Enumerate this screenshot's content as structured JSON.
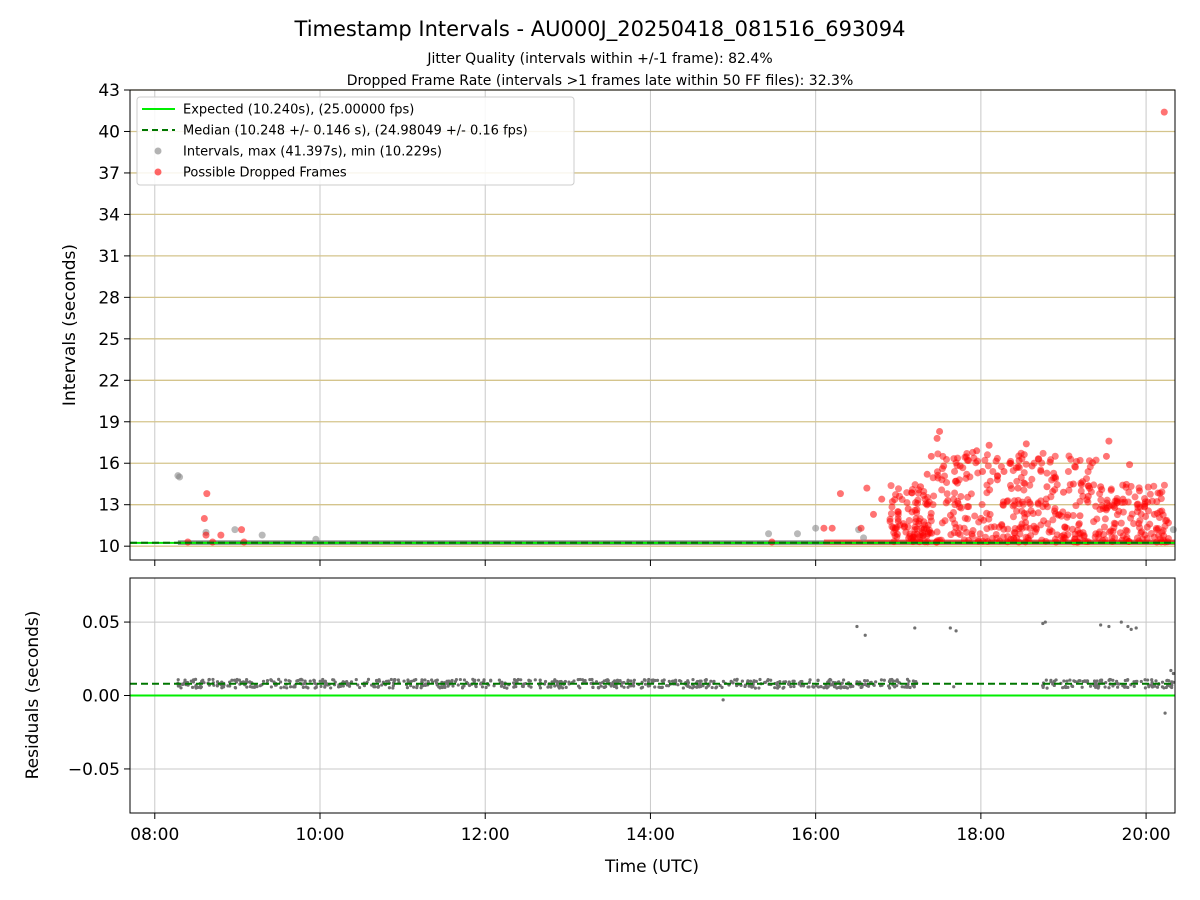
{
  "chart_data": [
    {
      "type": "scatter",
      "title": "Timestamp Intervals - AU000J_20250418_081516_693094",
      "subtitle_1": "Jitter Quality (intervals within +/-1 frame): 82.4%",
      "subtitle_2": "Dropped Frame Rate (intervals >1 frames late within 50 FF files): 32.3%",
      "ylabel": "Intervals (seconds)",
      "ylim": [
        9,
        43
      ],
      "xlim_hours": [
        7.7,
        20.35
      ],
      "yticks": [
        10,
        13,
        16,
        19,
        22,
        25,
        28,
        31,
        34,
        37,
        40,
        43
      ],
      "grid": "on",
      "legend_position": "top-left",
      "legend": [
        {
          "label": "Expected (10.240s), (25.00000 fps)",
          "style": "solid-line",
          "color": "#00ee00"
        },
        {
          "label": "Median (10.248 +/- 0.146 s), (24.98049 +/- 0.16 fps)",
          "style": "dashed-line",
          "color": "#007700"
        },
        {
          "label": "Intervals, max (41.397s), min (10.229s)",
          "style": "dot",
          "color": "#808080"
        },
        {
          "label": "Possible Dropped Frames",
          "style": "dot",
          "color": "#ff0000"
        }
      ],
      "expected": 10.24,
      "median": 10.248,
      "series": [
        {
          "name": "Intervals, max (41.397s), min (10.229s)",
          "color": "#808080",
          "points": [
            [
              8.28,
              15.1
            ],
            [
              8.3,
              15.0
            ],
            [
              8.62,
              11.0
            ],
            [
              8.97,
              11.2
            ],
            [
              9.3,
              10.8
            ],
            [
              9.95,
              10.5
            ],
            [
              15.43,
              10.9
            ],
            [
              15.78,
              10.9
            ],
            [
              16.0,
              11.3
            ],
            [
              16.52,
              11.2
            ],
            [
              16.58,
              10.6
            ],
            [
              20.33,
              11.2
            ]
          ]
        },
        {
          "name": "Possible Dropped Frames",
          "color": "#ff0000",
          "points": [
            [
              8.4,
              10.3
            ],
            [
              8.6,
              12.0
            ],
            [
              8.63,
              13.8
            ],
            [
              8.62,
              10.8
            ],
            [
              8.7,
              10.3
            ],
            [
              8.8,
              10.8
            ],
            [
              9.05,
              11.2
            ],
            [
              9.08,
              10.3
            ],
            [
              15.47,
              10.3
            ],
            [
              16.1,
              11.3
            ],
            [
              16.2,
              11.3
            ],
            [
              16.3,
              13.8
            ],
            [
              16.55,
              11.3
            ],
            [
              16.62,
              14.2
            ],
            [
              16.7,
              12.3
            ],
            [
              16.8,
              13.4
            ],
            [
              17.0,
              11.8
            ],
            [
              17.12,
              12.7
            ],
            [
              17.27,
              14.3
            ],
            [
              17.35,
              15.2
            ],
            [
              17.4,
              16.5
            ],
            [
              17.47,
              17.8
            ],
            [
              17.5,
              18.3
            ],
            [
              17.55,
              15.8
            ],
            [
              17.6,
              13.3
            ],
            [
              17.7,
              14.7
            ],
            [
              17.75,
              15.8
            ],
            [
              17.85,
              16.2
            ],
            [
              17.95,
              16.9
            ],
            [
              18.02,
              15.4
            ],
            [
              18.1,
              17.3
            ],
            [
              18.2,
              14.8
            ],
            [
              18.28,
              15.4
            ],
            [
              18.35,
              16.0
            ],
            [
              18.45,
              14.2
            ],
            [
              18.55,
              17.4
            ],
            [
              18.62,
              15.8
            ],
            [
              18.7,
              16.3
            ],
            [
              18.8,
              14.3
            ],
            [
              18.9,
              15.0
            ],
            [
              19.0,
              13.9
            ],
            [
              19.12,
              14.5
            ],
            [
              19.2,
              12.2
            ],
            [
              19.3,
              13.6
            ],
            [
              19.45,
              14.3
            ],
            [
              19.52,
              16.5
            ],
            [
              19.55,
              17.6
            ],
            [
              19.62,
              12.8
            ],
            [
              19.72,
              13.4
            ],
            [
              19.8,
              15.9
            ],
            [
              19.92,
              14.0
            ],
            [
              20.02,
              13.2
            ],
            [
              20.1,
              12.3
            ],
            [
              20.22,
              41.4
            ]
          ]
        }
      ]
    },
    {
      "type": "scatter",
      "xlabel": "Time (UTC)",
      "ylabel": "Residuals (seconds)",
      "ylim": [
        -0.08,
        0.08
      ],
      "yticks": [
        -0.05,
        0.0,
        0.05
      ],
      "ytick_labels": [
        "−0.05",
        "0.00",
        "0.05"
      ],
      "xtick_labels": [
        "08:00",
        "10:00",
        "12:00",
        "14:00",
        "16:00",
        "18:00",
        "20:00"
      ],
      "xticks_hours": [
        8,
        10,
        12,
        14,
        16,
        18,
        20
      ],
      "grid": "on",
      "expected_residual": 0.0,
      "median_residual": 0.008,
      "series": [
        {
          "name": "Residuals",
          "color": "#707070",
          "band": {
            "x_start": 8.28,
            "x_end": 20.35,
            "y_center": 0.008,
            "spread": 0.003
          },
          "points": [
            [
              14.88,
              -0.003
            ],
            [
              16.5,
              0.047
            ],
            [
              16.6,
              0.041
            ],
            [
              17.2,
              0.046
            ],
            [
              17.63,
              0.046
            ],
            [
              17.7,
              0.044
            ],
            [
              18.75,
              0.049
            ],
            [
              18.78,
              0.05
            ],
            [
              19.45,
              0.048
            ],
            [
              19.55,
              0.047
            ],
            [
              19.7,
              0.05
            ],
            [
              19.78,
              0.047
            ],
            [
              19.82,
              0.045
            ],
            [
              19.88,
              0.046
            ],
            [
              20.23,
              -0.012
            ],
            [
              20.3,
              0.017
            ],
            [
              20.33,
              0.015
            ]
          ]
        }
      ]
    }
  ]
}
